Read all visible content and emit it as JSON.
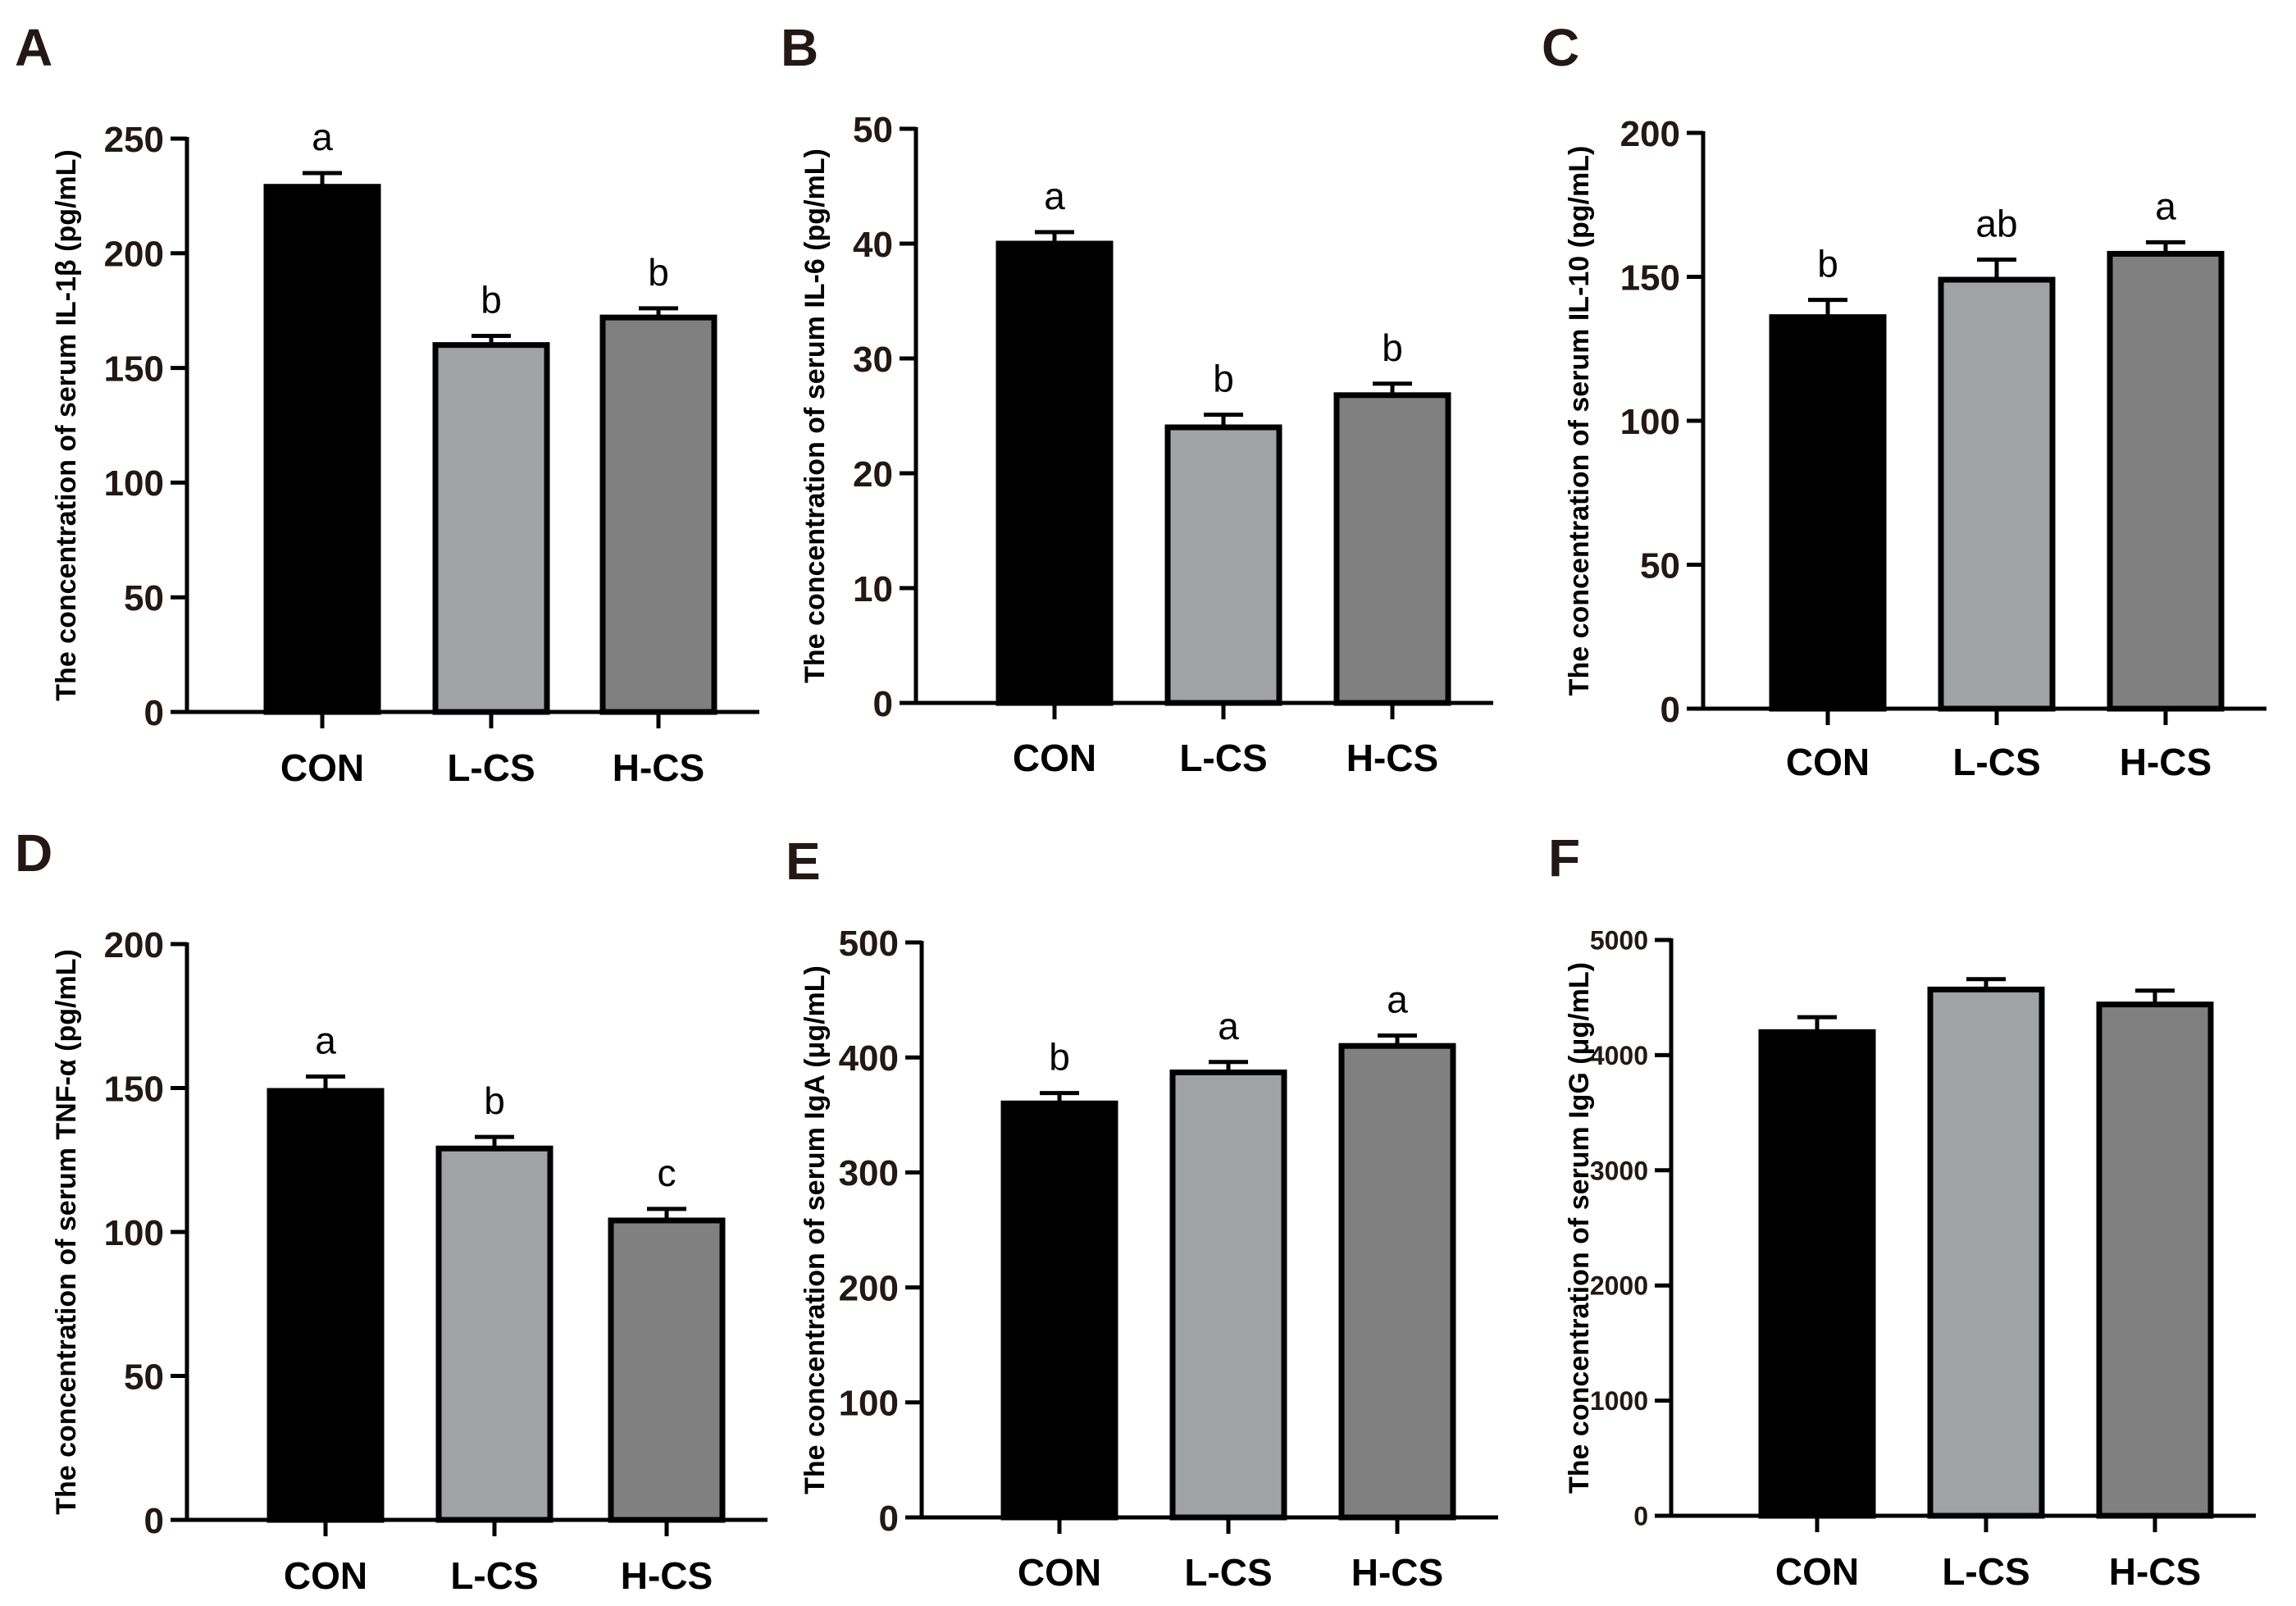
{
  "figure": {
    "categories": [
      "CON",
      "L-CS",
      "H-CS"
    ],
    "bar_colors": [
      "#000000",
      "#a0a2a6",
      "#808080"
    ]
  },
  "chart_data": [
    {
      "panel": "A",
      "type": "bar",
      "categories": [
        "CON",
        "L-CS",
        "H-CS"
      ],
      "values": [
        229,
        160,
        172
      ],
      "errors": [
        6,
        4,
        4
      ],
      "significance": [
        "a",
        "b",
        "b"
      ],
      "ylabel": "The concentration of serum IL-1β (pg/mL)",
      "ylim": [
        0,
        250
      ],
      "yticks": [
        0,
        50,
        100,
        150,
        200,
        250
      ],
      "grid": false
    },
    {
      "panel": "B",
      "type": "bar",
      "categories": [
        "CON",
        "L-CS",
        "H-CS"
      ],
      "values": [
        40,
        24,
        26.8
      ],
      "errors": [
        1,
        1.1,
        1
      ],
      "significance": [
        "a",
        "b",
        "b"
      ],
      "ylabel": "The concentration of serum IL-6 (pg/mL)",
      "ylim": [
        0,
        50
      ],
      "yticks": [
        0,
        10,
        20,
        30,
        40,
        50
      ],
      "grid": false
    },
    {
      "panel": "C",
      "type": "bar",
      "categories": [
        "CON",
        "L-CS",
        "H-CS"
      ],
      "values": [
        136,
        149,
        158
      ],
      "errors": [
        6,
        7,
        4
      ],
      "significance": [
        "b",
        "ab",
        "a"
      ],
      "ylabel": "The concentration of serum IL-10 (pg/mL)",
      "ylim": [
        0,
        200
      ],
      "yticks": [
        0,
        50,
        100,
        150,
        200
      ],
      "grid": false
    },
    {
      "panel": "D",
      "type": "bar",
      "categories": [
        "CON",
        "L-CS",
        "H-CS"
      ],
      "values": [
        149,
        129,
        104
      ],
      "errors": [
        5,
        4,
        4
      ],
      "significance": [
        "a",
        "b",
        "c"
      ],
      "ylabel": "The concentration of serum TNF-α (pg/mL)",
      "ylim": [
        0,
        200
      ],
      "yticks": [
        0,
        50,
        100,
        150,
        200
      ],
      "grid": false
    },
    {
      "panel": "E",
      "type": "bar",
      "categories": [
        "CON",
        "L-CS",
        "H-CS"
      ],
      "values": [
        360,
        387,
        410
      ],
      "errors": [
        9,
        9,
        9
      ],
      "significance": [
        "b",
        "a",
        "a"
      ],
      "ylabel": "The concentration of serum IgA (μg/mL)",
      "ylim": [
        0,
        500
      ],
      "yticks": [
        0,
        100,
        200,
        300,
        400,
        500
      ],
      "grid": false
    },
    {
      "panel": "F",
      "type": "bar",
      "categories": [
        "CON",
        "L-CS",
        "H-CS"
      ],
      "values": [
        4200,
        4570,
        4440
      ],
      "errors": [
        130,
        90,
        120
      ],
      "significance": [
        "",
        "",
        ""
      ],
      "ylabel": "The concentration of serum IgG (μg/mL)",
      "ylim": [
        0,
        5000
      ],
      "yticks": [
        0,
        1000,
        2000,
        3000,
        4000,
        5000
      ],
      "grid": false
    }
  ]
}
